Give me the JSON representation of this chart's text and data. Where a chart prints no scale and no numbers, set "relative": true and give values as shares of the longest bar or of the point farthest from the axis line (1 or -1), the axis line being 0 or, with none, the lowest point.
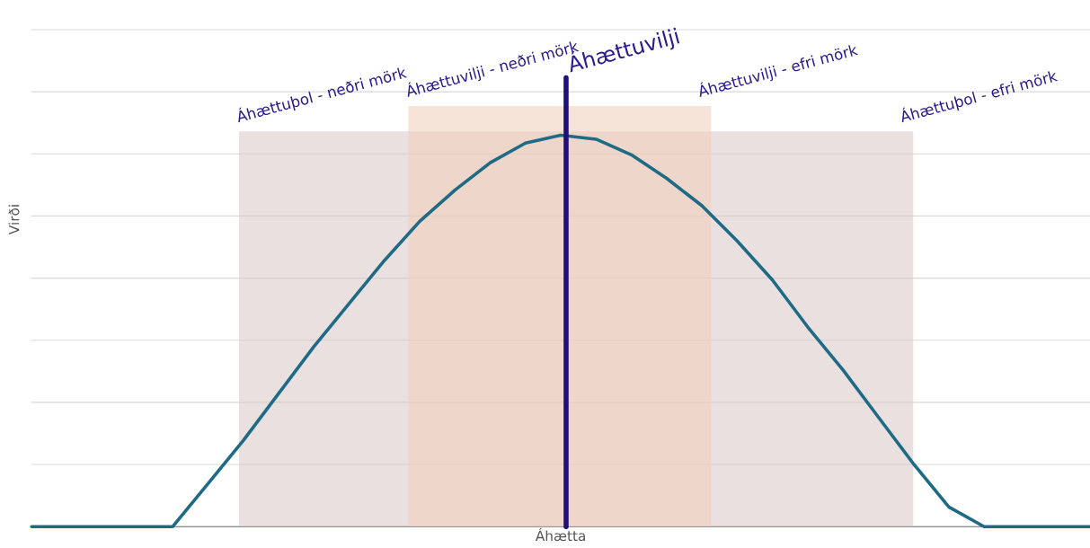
{
  "chart_data": {
    "type": "line",
    "relative": true,
    "xlabel": "Áhætta",
    "ylabel": "Virði",
    "grid": "y",
    "categories": [
      null,
      null,
      null,
      null,
      null,
      null,
      null,
      null,
      null,
      null,
      null,
      null,
      null,
      null,
      null,
      null,
      null,
      null,
      null,
      null,
      null,
      null,
      null,
      null,
      null,
      null,
      null,
      null,
      null,
      null,
      null
    ],
    "series": [
      {
        "color": "#1f6a85",
        "values": [
          0,
          0,
          0,
          0,
          0,
          0.11,
          0.22,
          0.34,
          0.46,
          0.57,
          0.68,
          0.78,
          0.86,
          0.93,
          0.98,
          1.0,
          0.99,
          0.95,
          0.89,
          0.82,
          0.73,
          0.63,
          0.51,
          0.4,
          0.28,
          0.16,
          0.05,
          0,
          0,
          0,
          0
        ]
      }
    ],
    "annotations": [
      "Áhættuþol - neðri mörk",
      "Áhættuþol - efri mörk",
      "Áhættuvilji - neðri mörk",
      "Áhættuvilji - efri mörk",
      "Áhættuvilji"
    ]
  }
}
